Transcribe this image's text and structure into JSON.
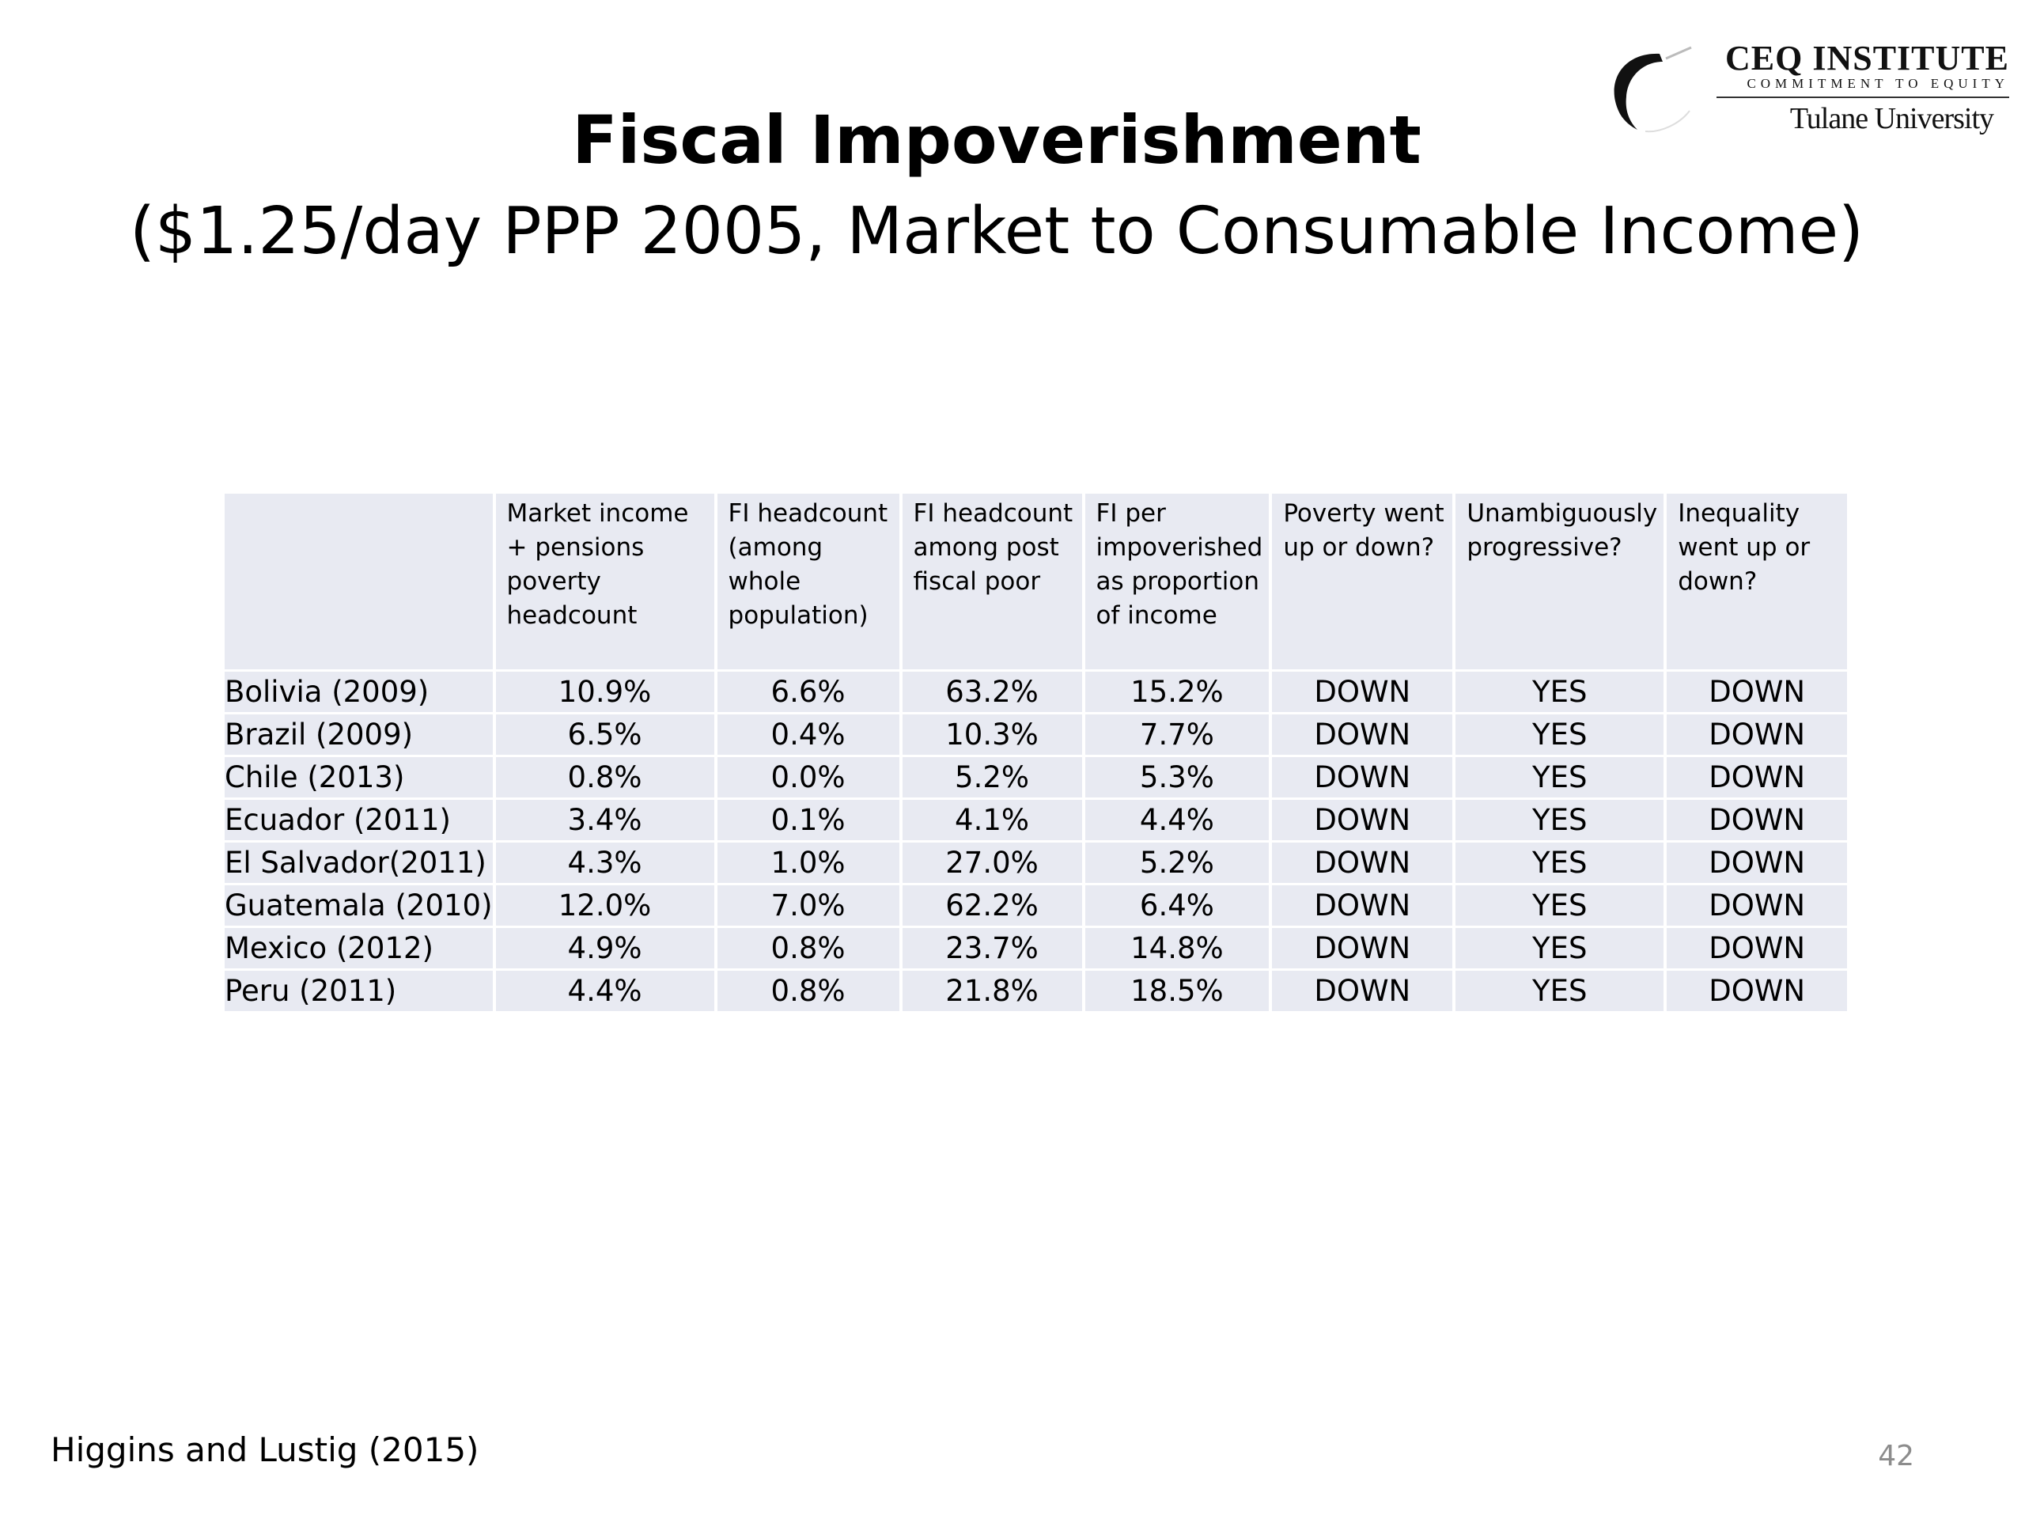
{
  "logo": {
    "name": "CEQ INSTITUTE",
    "tagline": "COMMITMENT TO EQUITY",
    "university": "Tulane University"
  },
  "title": "Fiscal Impoverishment",
  "subtitle": "($1.25/day PPP 2005, Market to Consumable Income)",
  "table": {
    "headers": [
      "",
      "Market income + pensions poverty headcount",
      "FI headcount (among whole population)",
      "FI headcount among post fiscal poor",
      "FI per impoverished as proportion of income",
      "Poverty went up or down?",
      "Unambiguously progressive?",
      "Inequality went up or down?"
    ],
    "rows": [
      [
        "Bolivia (2009)",
        "10.9%",
        "6.6%",
        "63.2%",
        "15.2%",
        "DOWN",
        "YES",
        "DOWN"
      ],
      [
        "Brazil (2009)",
        "6.5%",
        "0.4%",
        "10.3%",
        "7.7%",
        "DOWN",
        "YES",
        "DOWN"
      ],
      [
        "Chile (2013)",
        "0.8%",
        "0.0%",
        "5.2%",
        "5.3%",
        "DOWN",
        "YES",
        "DOWN"
      ],
      [
        "Ecuador (2011)",
        "3.4%",
        "0.1%",
        "4.1%",
        "4.4%",
        "DOWN",
        "YES",
        "DOWN"
      ],
      [
        "El Salvador(2011)",
        "4.3%",
        "1.0%",
        "27.0%",
        "5.2%",
        "DOWN",
        "YES",
        "DOWN"
      ],
      [
        "Guatemala (2010)",
        "12.0%",
        "7.0%",
        "62.2%",
        "6.4%",
        "DOWN",
        "YES",
        "DOWN"
      ],
      [
        "Mexico (2012)",
        "4.9%",
        "0.8%",
        "23.7%",
        "14.8%",
        "DOWN",
        "YES",
        "DOWN"
      ],
      [
        "Peru (2011)",
        "4.4%",
        "0.8%",
        "21.8%",
        "18.5%",
        "DOWN",
        "YES",
        "DOWN"
      ]
    ]
  },
  "footer": {
    "source": "Higgins and Lustig (2015)",
    "page_number": "42"
  }
}
